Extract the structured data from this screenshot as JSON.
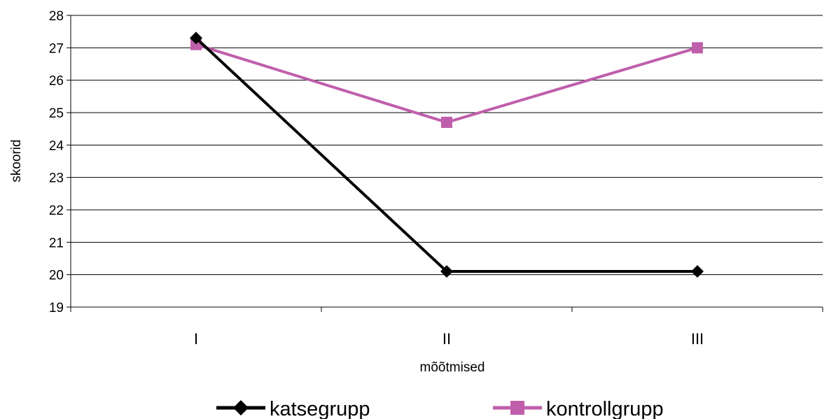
{
  "chart_data": {
    "type": "line",
    "categories": [
      "I",
      "II",
      "III"
    ],
    "xlabel": "mõõtmised",
    "ylabel": "skoorid",
    "ylim": [
      19,
      28
    ],
    "yticks": [
      19,
      20,
      21,
      22,
      23,
      24,
      25,
      26,
      27,
      28
    ],
    "grid": true,
    "legend_position": "bottom",
    "series": [
      {
        "name": "katsegrupp",
        "values": [
          27.3,
          20.1,
          20.1
        ],
        "color": "#000000",
        "marker": "diamond"
      },
      {
        "name": "kontrollgrupp",
        "values": [
          27.1,
          24.7,
          27.0
        ],
        "color": "#bf5fab",
        "marker": "square"
      }
    ]
  }
}
